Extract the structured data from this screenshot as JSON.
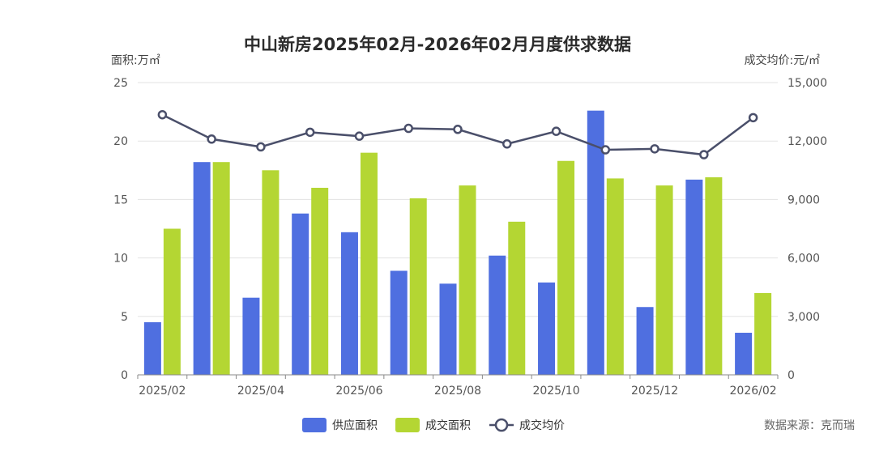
{
  "chart_data": {
    "type": "bar",
    "title": "中山新房2025年02月-2026年02月月度供求数据",
    "y_left_label": "面积:万㎡",
    "y_right_label": "成交均价:元/㎡",
    "categories": [
      "2025/02",
      "2025/03",
      "2025/04",
      "2025/05",
      "2025/06",
      "2025/07",
      "2025/08",
      "2025/09",
      "2025/10",
      "2025/11",
      "2025/12",
      "2026/01",
      "2026/02"
    ],
    "x_tick_labels": [
      "2025/02",
      "2025/04",
      "2025/06",
      "2025/08",
      "2025/10",
      "2025/12",
      "2026/02"
    ],
    "y_left_ticks": [
      "0",
      "5",
      "10",
      "15",
      "20",
      "25"
    ],
    "y_right_ticks": [
      "0",
      "3,000",
      "6,000",
      "9,000",
      "12,000",
      "15,000"
    ],
    "ylim_left": [
      0,
      25
    ],
    "ylim_right": [
      0,
      15000
    ],
    "series": [
      {
        "name": "供应面积",
        "type": "bar",
        "axis": "left",
        "color": "#4f6fe0",
        "values": [
          4.5,
          18.2,
          6.6,
          13.8,
          12.2,
          8.9,
          7.8,
          10.2,
          7.9,
          22.6,
          5.8,
          16.7,
          3.6
        ]
      },
      {
        "name": "成交面积",
        "type": "bar",
        "axis": "left",
        "color": "#b4d633",
        "values": [
          12.5,
          18.2,
          17.5,
          16.0,
          19.0,
          15.1,
          16.2,
          13.1,
          18.3,
          16.8,
          16.2,
          16.9,
          7.0
        ]
      },
      {
        "name": "成交均价",
        "type": "line",
        "axis": "right",
        "color": "#4a4f6a",
        "values": [
          13350,
          12100,
          11700,
          12450,
          12250,
          12650,
          12600,
          11850,
          12500,
          11550,
          11600,
          11300,
          13200
        ]
      }
    ],
    "legend_position": "bottom-center",
    "grid": true
  },
  "source_text": "数据来源：克而瑞"
}
